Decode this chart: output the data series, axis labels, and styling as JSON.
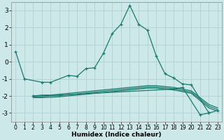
{
  "xlabel": "Humidex (Indice chaleur)",
  "bg_color": "#cce8e8",
  "grid_color": "#b0d0d0",
  "line_color": "#1a7a6e",
  "xlim": [
    -0.5,
    23.5
  ],
  "ylim": [
    -3.5,
    3.5
  ],
  "yticks": [
    -3,
    -2,
    -1,
    0,
    1,
    2,
    3
  ],
  "xticks": [
    0,
    1,
    2,
    3,
    4,
    5,
    6,
    7,
    8,
    9,
    10,
    11,
    12,
    13,
    14,
    15,
    16,
    17,
    18,
    19,
    20,
    21,
    22,
    23
  ],
  "series": [
    {
      "x": [
        0,
        1,
        3,
        4,
        6,
        7,
        8,
        9,
        10,
        11,
        12,
        13,
        14,
        15,
        16,
        17,
        18,
        19,
        20,
        22,
        23
      ],
      "y": [
        0.6,
        -1.0,
        -1.2,
        -1.2,
        -0.8,
        -0.85,
        -0.4,
        -0.35,
        0.5,
        1.65,
        2.2,
        3.3,
        2.2,
        1.85,
        0.35,
        -0.7,
        -0.95,
        -1.3,
        -1.35,
        -3.0,
        -2.85
      ],
      "marker": true
    },
    {
      "x": [
        2,
        5,
        18,
        19,
        21,
        22
      ],
      "y": [
        -2.0,
        -1.95,
        -1.6,
        -1.5,
        -3.1,
        -3.0
      ],
      "marker": true
    },
    {
      "x": [
        2,
        3,
        4,
        5,
        6,
        7,
        8,
        9,
        10,
        11,
        12,
        13,
        14,
        15,
        16,
        17,
        18,
        19,
        20,
        22,
        23
      ],
      "y": [
        -2.0,
        -1.95,
        -1.95,
        -1.9,
        -1.85,
        -1.8,
        -1.75,
        -1.7,
        -1.65,
        -1.6,
        -1.55,
        -1.5,
        -1.45,
        -1.4,
        -1.4,
        -1.45,
        -1.5,
        -1.6,
        -1.7,
        -2.5,
        -2.7
      ],
      "marker": false
    },
    {
      "x": [
        2,
        3,
        4,
        5,
        6,
        7,
        8,
        9,
        10,
        11,
        12,
        13,
        14,
        15,
        16,
        17,
        18,
        19,
        20,
        22,
        23
      ],
      "y": [
        -2.05,
        -2.05,
        -2.0,
        -1.98,
        -1.93,
        -1.88,
        -1.83,
        -1.78,
        -1.73,
        -1.68,
        -1.63,
        -1.58,
        -1.53,
        -1.48,
        -1.48,
        -1.53,
        -1.58,
        -1.68,
        -1.78,
        -2.6,
        -2.8
      ],
      "marker": false
    },
    {
      "x": [
        2,
        3,
        4,
        5,
        6,
        7,
        8,
        9,
        10,
        11,
        12,
        13,
        14,
        15,
        16,
        17,
        18,
        19,
        20,
        22,
        23
      ],
      "y": [
        -2.1,
        -2.1,
        -2.08,
        -2.05,
        -2.0,
        -1.95,
        -1.9,
        -1.85,
        -1.8,
        -1.75,
        -1.7,
        -1.65,
        -1.6,
        -1.55,
        -1.55,
        -1.6,
        -1.65,
        -1.75,
        -1.85,
        -2.7,
        -2.9
      ],
      "marker": false
    }
  ]
}
